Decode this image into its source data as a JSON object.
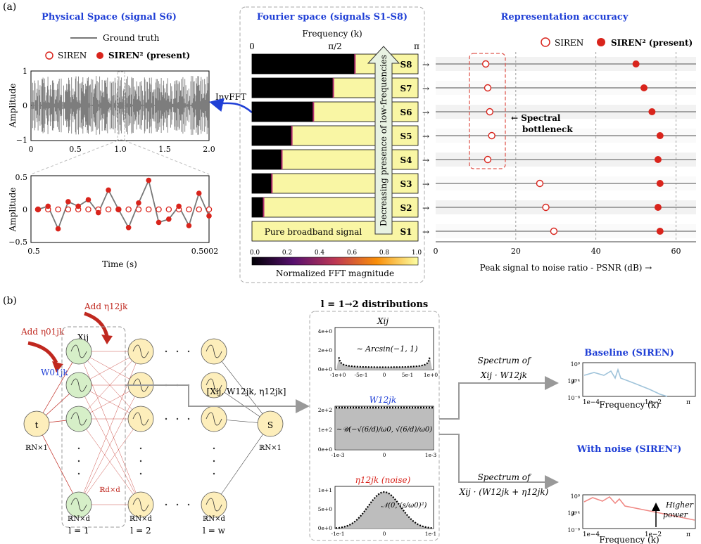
{
  "panel_a": {
    "label": "(a)",
    "physical": {
      "title": "Physical Space (signal S6)",
      "legend_gt": "Ground truth",
      "legend_siren": "SIREN",
      "legend_siren2": "SIREN² (present)",
      "ylabel": "Amplitude",
      "xticks": [
        "0",
        "0.5",
        "1.0",
        "1.5",
        "2.0"
      ],
      "yticks": [
        "1",
        "0",
        "−1"
      ],
      "zoom_ylabel": "Amplitude",
      "zoom_yticks": [
        "0.5",
        "0",
        "−0.5"
      ],
      "zoom_xticks": [
        "0.5",
        "0.5002"
      ],
      "zoom_xlabel": "Time (s)",
      "invfft": "InvFFT"
    },
    "fourier": {
      "title": "Fourier space (signals S1-S8)",
      "freq_label": "Frequency (k)",
      "ticks": [
        "0",
        "π/2",
        "π"
      ],
      "arrow_text": "Decreasing presence of low-frequencies",
      "broadband": "Pure broadband signal",
      "cbar_ticks": [
        "0.0",
        "0.2",
        "0.4",
        "0.6",
        "0.8",
        "1.0"
      ],
      "cbar_label": "Normalized FFT magnitude",
      "signals": [
        "S8",
        "S7",
        "S6",
        "S5",
        "S4",
        "S3",
        "S2",
        "S1"
      ],
      "dark_fraction": [
        0.62,
        0.49,
        0.37,
        0.24,
        0.18,
        0.12,
        0.07,
        0.0
      ]
    },
    "accuracy": {
      "title": "Representation accuracy",
      "legend_siren": "SIREN",
      "legend_siren2": "SIREN² (present)",
      "bottleneck": [
        "← Spectral",
        "bottleneck"
      ],
      "xticks": [
        "0",
        "20",
        "40",
        "60"
      ],
      "xlabel": "Peak signal to noise ratio - PSNR (dB) →",
      "xmax": 65
    }
  },
  "chart_data": {
    "type": "scatter",
    "title": "Representation accuracy",
    "xlabel": "Peak signal to noise ratio - PSNR (dB) →",
    "xlim": [
      0,
      65
    ],
    "categories": [
      "S8",
      "S7",
      "S6",
      "S5",
      "S4",
      "S3",
      "S2",
      "S1"
    ],
    "series": [
      {
        "name": "SIREN",
        "values": [
          12.5,
          13,
          13.5,
          14,
          13,
          26,
          27.5,
          29.5
        ]
      },
      {
        "name": "SIREN² (present)",
        "values": [
          50,
          52,
          54,
          56,
          55.5,
          56,
          55.5,
          56
        ]
      }
    ]
  },
  "panel_b": {
    "label": "(b)",
    "add_eta01": "Add η01jk",
    "add_eta12": "Add η12jk",
    "w01": "W01jk",
    "xij": "Xij",
    "node_t": "t",
    "node_s": "S",
    "r_t": "ℝN×1",
    "r_s": "ℝN×1",
    "r_dxd": "ℝd×d",
    "r_nxd": "ℝN×d",
    "layers": [
      "l = 1",
      "l = 2",
      "l = w"
    ],
    "concat_label": "[Xij, W12jk, η12jk]",
    "dist_title": "l = 1→2 distributions",
    "dist_xij": {
      "title": "Xij",
      "annot": "∼ Arcsin(−1, 1)",
      "yticks": [
        "4e+0",
        "2e+0",
        "0e+0"
      ],
      "xticks": [
        "-1e+0",
        "-5e-1",
        "0",
        "5e-1",
        "1e+0"
      ]
    },
    "dist_w": {
      "title": "W12jk",
      "annot": "∼𝒰(−√(6/d)/ω0, √(6/d)/ω0)",
      "yticks": [
        "2e+2",
        "1e+2",
        "0e+0"
      ],
      "xticks": [
        "-1e-3",
        "0",
        "1e-3"
      ]
    },
    "dist_eta": {
      "title": "η12jk (noise)",
      "annot": "𝒩(0, (s/ω0)²)",
      "yticks": [
        "1e+1",
        "5e+0",
        "0e+0"
      ],
      "xticks": [
        "-1e-1",
        "0",
        "1e-1"
      ]
    },
    "spec1": [
      "Spectrum of",
      "Xij · W12jk"
    ],
    "spec2": [
      "Spectrum of",
      "Xij · (W12jk + η12jk)"
    ],
    "baseline": {
      "title": "Baseline (SIREN)",
      "yticks": [
        "10⁰",
        "10⁻⁴",
        "10⁻⁸"
      ],
      "xticks": [
        "1e−4",
        "1e−2",
        "π"
      ],
      "xlabel": "Frequency (k)",
      "ylabel": "℘"
    },
    "noise": {
      "title": "With noise (SIREN²)",
      "yticks": [
        "10⁰",
        "10⁻⁴",
        "10⁻⁸"
      ],
      "xticks": [
        "1e−4",
        "1e−2",
        "π"
      ],
      "xlabel": "Frequency (k)",
      "ylabel": "℘",
      "annot": [
        "Higher",
        "power"
      ]
    }
  },
  "colors": {
    "blue": "#1f3fd6",
    "red": "#d9241c",
    "gray": "#777777",
    "yellow": "#f9f6a4",
    "node_yellow": "#fdeebb",
    "node_green": "#d6efc8",
    "spec_blue": "#9fc3da",
    "spec_red": "#f08a86"
  }
}
